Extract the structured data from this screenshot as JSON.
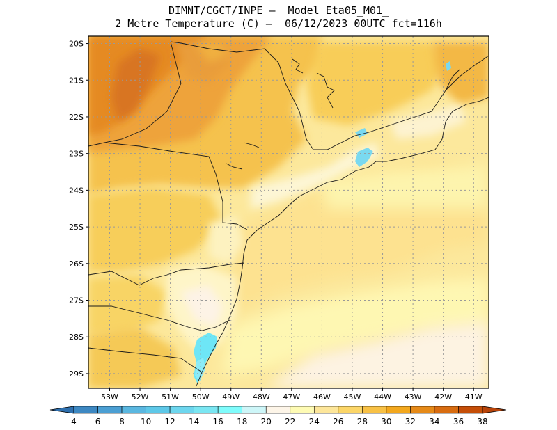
{
  "title": {
    "line1": "DIMNT/CGCT/INPE –  Model Eta05_M01_",
    "line2": "2 Metre Temperature (C) –  06/12/2023 00UTC fct=116h"
  },
  "map": {
    "lon_range": [
      -53.7,
      -40.5
    ],
    "lat_range": [
      -29.4,
      -19.8
    ],
    "lat_ticks": [
      "20S",
      "21S",
      "22S",
      "23S",
      "24S",
      "25S",
      "26S",
      "27S",
      "28S",
      "29S"
    ],
    "lon_ticks": [
      "53W",
      "52W",
      "51W",
      "50W",
      "49W",
      "48W",
      "47W",
      "46W",
      "45W",
      "44W",
      "43W",
      "42W",
      "41W"
    ],
    "grid": true
  },
  "colorbar": {
    "labels": [
      "4",
      "6",
      "8",
      "10",
      "12",
      "14",
      "16",
      "18",
      "20",
      "22",
      "24",
      "26",
      "28",
      "30",
      "32",
      "34",
      "36",
      "38"
    ],
    "colors": [
      "#2e6fae",
      "#3d88c2",
      "#4b9fd3",
      "#5ab7e0",
      "#5ec8e8",
      "#6dd6ee",
      "#7ae6f2",
      "#7ffcfc",
      "#cdf6f8",
      "#fdf5e8",
      "#fefbb4",
      "#fde69a",
      "#fcd668",
      "#f8c145",
      "#f3a81e",
      "#e68a18",
      "#d86c10",
      "#c54e08",
      "#b8440a"
    ]
  }
}
